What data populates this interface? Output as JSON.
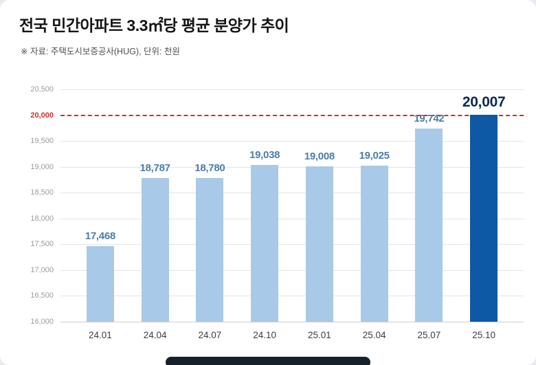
{
  "header": {
    "title": "전국 민간아파트 3.3㎡당 평균 분양가 추이",
    "source": "※ 자료: 주택도시보증공사(HUG), 단위: 천원"
  },
  "chart_data": {
    "type": "bar",
    "title": "전국 민간아파트 3.3㎡당 평균 분양가 추이",
    "categories": [
      "24.01",
      "24.04",
      "24.07",
      "24.10",
      "25.01",
      "25.04",
      "25.07",
      "25.10"
    ],
    "values": [
      17468,
      18787,
      18780,
      19038,
      19008,
      19025,
      19742,
      20007
    ],
    "value_labels": [
      "17,468",
      "18,787",
      "18,780",
      "19,038",
      "19,008",
      "19,025",
      "19,742",
      "20,007"
    ],
    "xlabel": "",
    "ylabel": "",
    "ylim": [
      16000,
      20500
    ],
    "yticks": [
      16000,
      16500,
      17000,
      17500,
      18000,
      18500,
      19000,
      19500,
      20000,
      20500
    ],
    "ytick_labels": [
      "16,000",
      "16,500",
      "17,000",
      "17,500",
      "18,000",
      "18,500",
      "19,000",
      "19,500",
      "20,000",
      "20,500"
    ],
    "grid": true,
    "legend": false,
    "reference_line": {
      "value": 20000,
      "label": "20,000",
      "color": "#d42b2b",
      "style": "dashed"
    },
    "highlight_index": 7,
    "colors": {
      "bar": "#a8c9e8",
      "highlight_bar": "#0d59a6",
      "value_label": "#4a7dab",
      "highlight_value_label": "#0a2a55"
    }
  }
}
